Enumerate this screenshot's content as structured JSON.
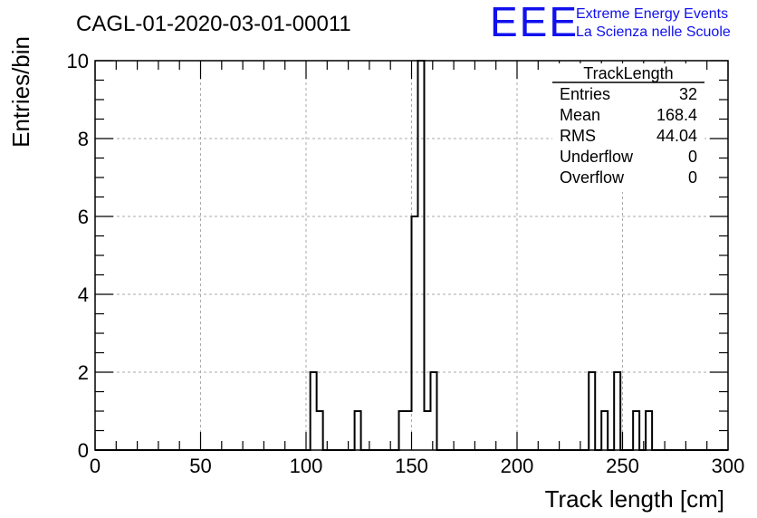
{
  "header": {
    "run_id": "CAGL-01-2020-03-01-00011",
    "logo_text": "EEE",
    "project_line1": "Extreme Energy Events",
    "project_line2": "La Scienza nelle Scuole",
    "brand_color": "#1010ee"
  },
  "stats_box": {
    "title": "TrackLength",
    "rows": [
      {
        "label": "Entries",
        "value": "32"
      },
      {
        "label": "Mean",
        "value": "168.4"
      },
      {
        "label": "RMS",
        "value": "44.04"
      },
      {
        "label": "Underflow",
        "value": "0"
      },
      {
        "label": "Overflow",
        "value": "0"
      }
    ]
  },
  "chart_data": {
    "type": "histogram",
    "xlabel": "Track length [cm]",
    "ylabel": "Entries/bin",
    "xlim": [
      0,
      300
    ],
    "ylim": [
      0,
      10
    ],
    "bin_width": 3,
    "grid": true,
    "x_ticks": [
      "0",
      "50",
      "100",
      "150",
      "200",
      "250",
      "300"
    ],
    "y_ticks": [
      "0",
      "2",
      "4",
      "6",
      "8",
      "10"
    ],
    "bins": [
      {
        "x0": 102,
        "x1": 105,
        "count": 2
      },
      {
        "x0": 105,
        "x1": 108,
        "count": 1
      },
      {
        "x0": 123,
        "x1": 126,
        "count": 1
      },
      {
        "x0": 144,
        "x1": 147,
        "count": 1
      },
      {
        "x0": 147,
        "x1": 150,
        "count": 1
      },
      {
        "x0": 150,
        "x1": 153,
        "count": 6
      },
      {
        "x0": 153,
        "x1": 156,
        "count": 10
      },
      {
        "x0": 156,
        "x1": 159,
        "count": 1
      },
      {
        "x0": 159,
        "x1": 162,
        "count": 2
      },
      {
        "x0": 234,
        "x1": 237,
        "count": 2
      },
      {
        "x0": 240,
        "x1": 243,
        "count": 1
      },
      {
        "x0": 246,
        "x1": 249,
        "count": 2
      },
      {
        "x0": 255,
        "x1": 258,
        "count": 1
      },
      {
        "x0": 261,
        "x1": 264,
        "count": 1
      }
    ]
  }
}
